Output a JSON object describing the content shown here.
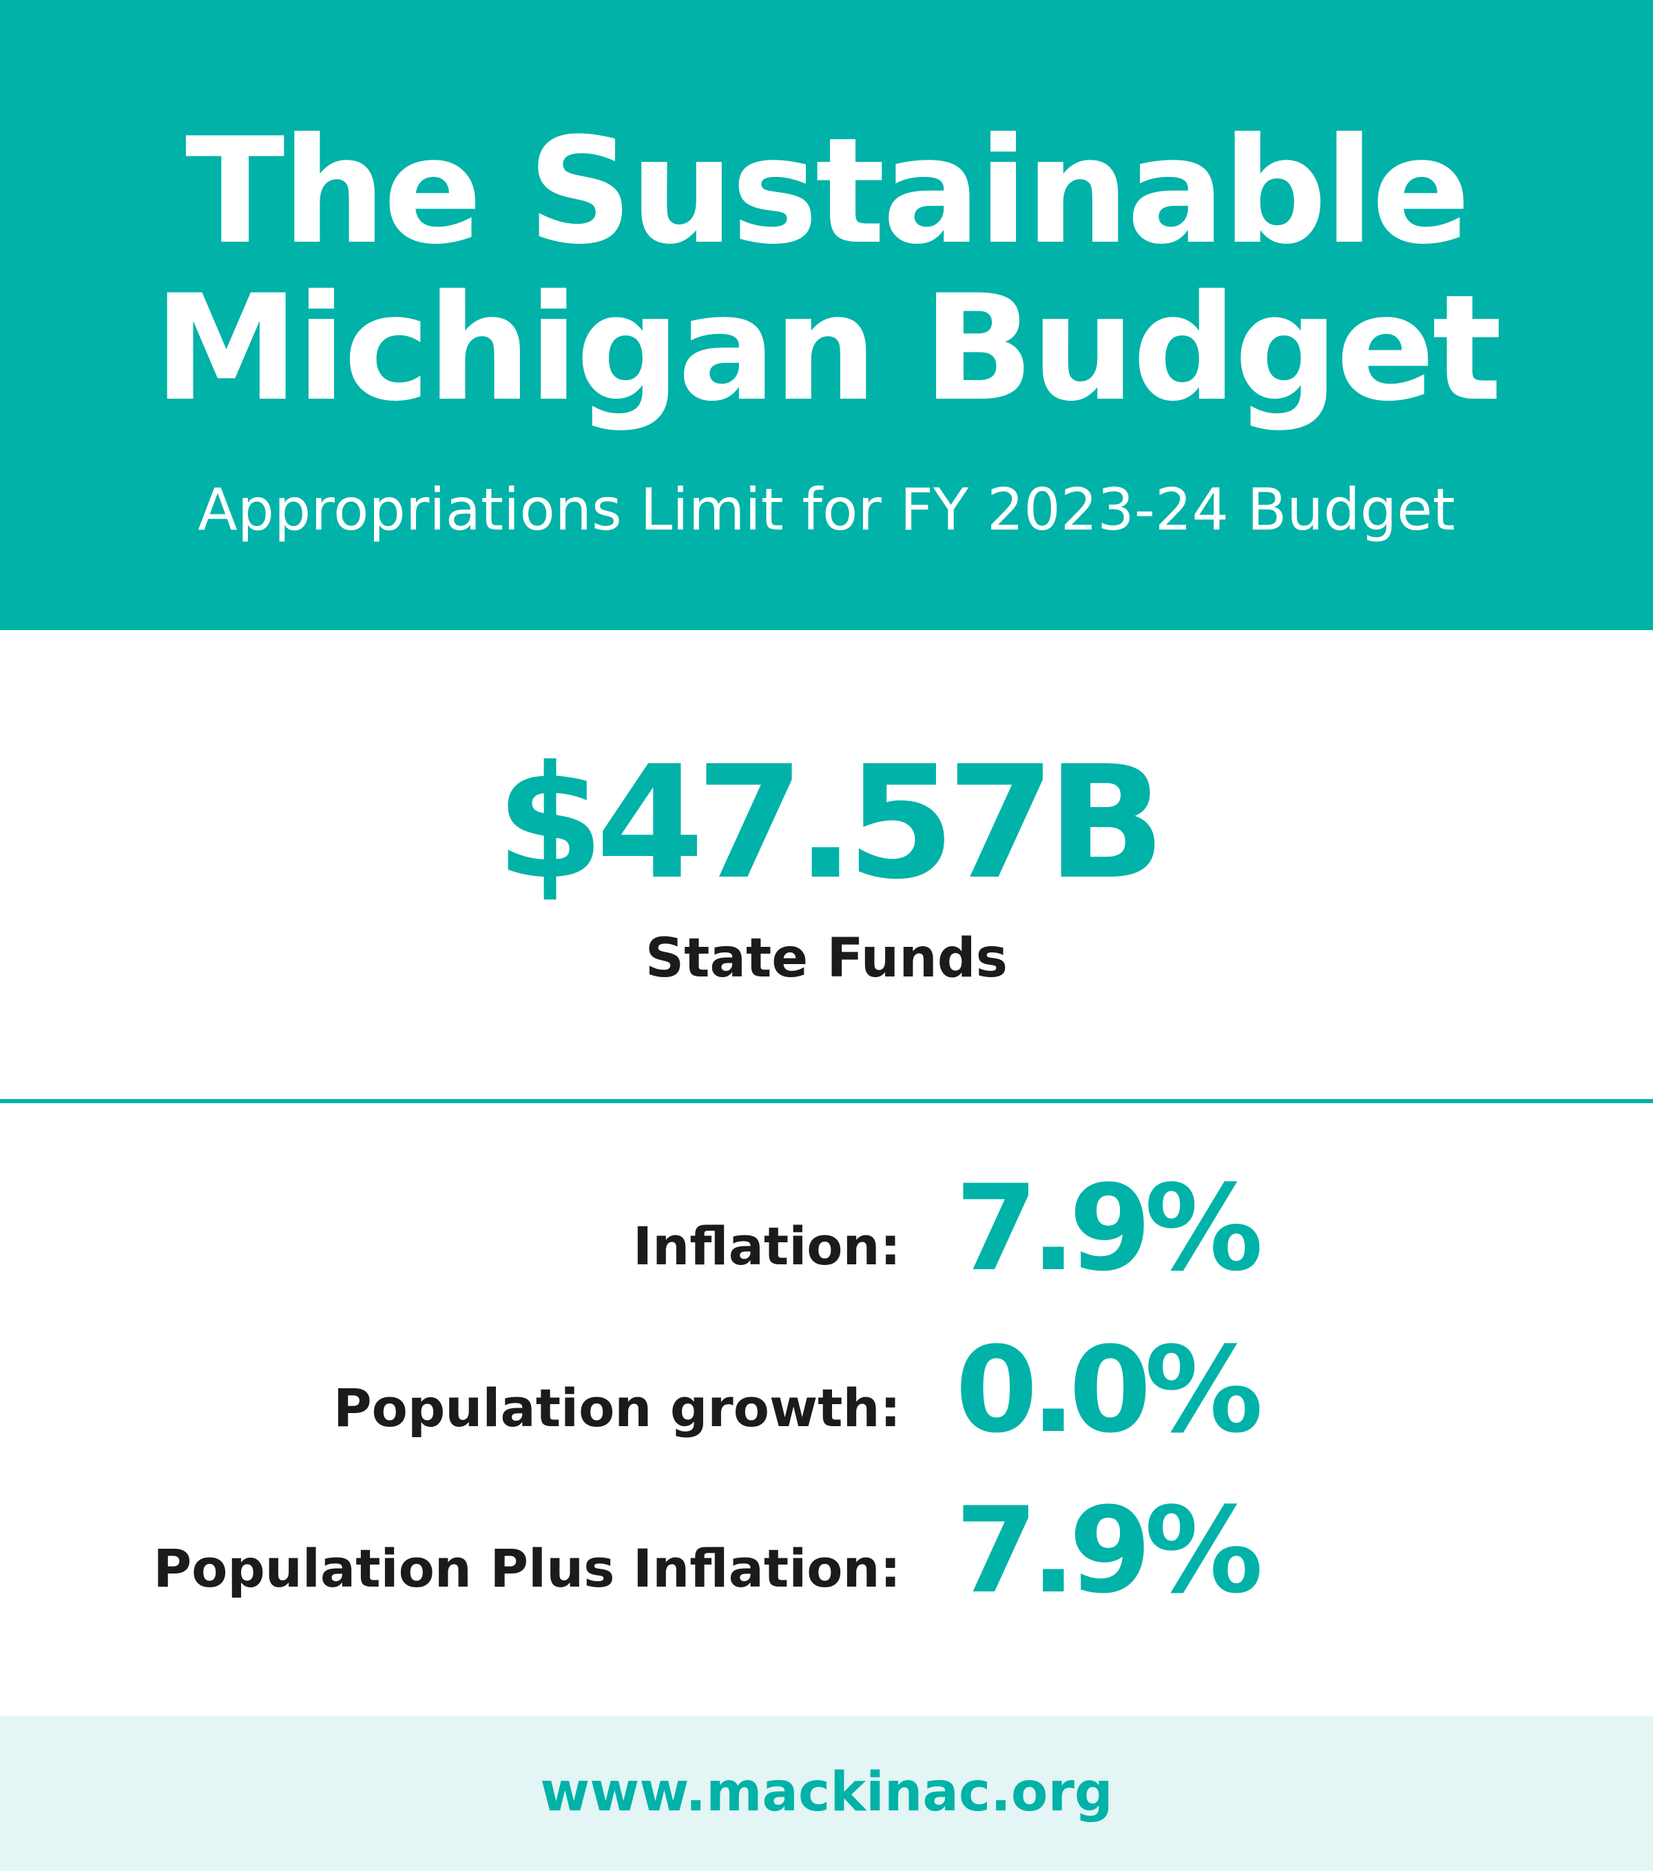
{
  "header": {
    "title_line1": "The Sustainable",
    "title_line2": "Michigan Budget",
    "subtitle": "Appropriations Limit for FY 2023-24 Budget"
  },
  "headline": {
    "amount": "$47.57B",
    "label": "State Funds"
  },
  "stats": [
    {
      "label": "Inflation:",
      "value": "7.9%"
    },
    {
      "label": "Population growth:",
      "value": "0.0%"
    },
    {
      "label": "Population Plus Inflation:",
      "value": "7.9%"
    }
  ],
  "footer": {
    "url": "www.mackinac.org"
  },
  "colors": {
    "brand_teal": "#00b2a8",
    "text_dark": "#1b1b1b",
    "footer_bg": "#e3f5f4"
  }
}
